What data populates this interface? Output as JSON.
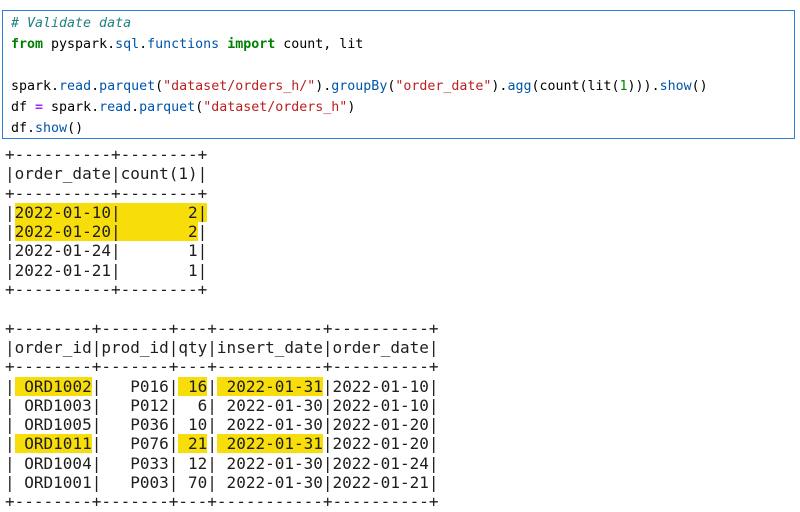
{
  "colors": {
    "cell_border": "#2e7ed5",
    "highlight": "#f7dd0a",
    "comment": "#208080",
    "keyword": "#008000",
    "property": "#0055aa",
    "string": "#ba2121",
    "number": "#008800",
    "operator": "#aa22ff",
    "output_text": "#1e1e1e"
  },
  "code_cell": {
    "lines": [
      [
        {
          "t": "# Validate data",
          "c": "com"
        }
      ],
      [
        {
          "t": "from",
          "c": "kw"
        },
        {
          "t": " pyspark.",
          "c": "pl"
        },
        {
          "t": "sql",
          "c": "prop"
        },
        {
          "t": ".",
          "c": "pl"
        },
        {
          "t": "functions",
          "c": "prop"
        },
        {
          "t": " ",
          "c": "pl"
        },
        {
          "t": "import",
          "c": "kw"
        },
        {
          "t": " count, lit",
          "c": "pl"
        }
      ],
      [],
      [
        {
          "t": "spark.",
          "c": "pl"
        },
        {
          "t": "read",
          "c": "prop"
        },
        {
          "t": ".",
          "c": "pl"
        },
        {
          "t": "parquet",
          "c": "prop"
        },
        {
          "t": "(",
          "c": "pl"
        },
        {
          "t": "\"dataset/orders_h/\"",
          "c": "str"
        },
        {
          "t": ").",
          "c": "pl"
        },
        {
          "t": "groupBy",
          "c": "prop"
        },
        {
          "t": "(",
          "c": "pl"
        },
        {
          "t": "\"order_date\"",
          "c": "str"
        },
        {
          "t": ").",
          "c": "pl"
        },
        {
          "t": "agg",
          "c": "prop"
        },
        {
          "t": "(count(lit(",
          "c": "pl"
        },
        {
          "t": "1",
          "c": "num"
        },
        {
          "t": "))).",
          "c": "pl"
        },
        {
          "t": "show",
          "c": "prop"
        },
        {
          "t": "()",
          "c": "pl"
        }
      ],
      [
        {
          "t": "df ",
          "c": "pl"
        },
        {
          "t": "=",
          "c": "op"
        },
        {
          "t": " spark.",
          "c": "pl"
        },
        {
          "t": "read",
          "c": "prop"
        },
        {
          "t": ".",
          "c": "pl"
        },
        {
          "t": "parquet",
          "c": "prop"
        },
        {
          "t": "(",
          "c": "pl"
        },
        {
          "t": "\"dataset/orders_h\"",
          "c": "str"
        },
        {
          "t": ")",
          "c": "pl"
        }
      ],
      [
        {
          "t": "df.",
          "c": "pl"
        },
        {
          "t": "show",
          "c": "prop"
        },
        {
          "t": "()",
          "c": "pl"
        }
      ]
    ]
  },
  "output": {
    "lines": [
      [
        {
          "t": "+----------+--------+"
        }
      ],
      [
        {
          "t": "|order_date|count(1)|"
        }
      ],
      [
        {
          "t": "+----------+--------+"
        }
      ],
      [
        {
          "t": "|"
        },
        {
          "t": "2022-01-10|       2|",
          "hl": true
        }
      ],
      [
        {
          "t": "|"
        },
        {
          "t": "2022-01-20|       2",
          "hl": true
        },
        {
          "t": "|"
        }
      ],
      [
        {
          "t": "|2022-01-24|       1|"
        }
      ],
      [
        {
          "t": "|2022-01-21|       1|"
        }
      ],
      [
        {
          "t": "+----------+--------+"
        }
      ],
      [],
      [
        {
          "t": "+--------+-------+---+-----------+----------+"
        }
      ],
      [
        {
          "t": "|order_id|prod_id|qty|insert_date|order_date|"
        }
      ],
      [
        {
          "t": "+--------+-------+---+-----------+----------+"
        }
      ],
      [
        {
          "t": "|"
        },
        {
          "t": " ORD1002",
          "hl": true
        },
        {
          "t": "|   P016|"
        },
        {
          "t": " 16",
          "hl": true
        },
        {
          "t": "|"
        },
        {
          "t": " 2022-01-31",
          "hl": true
        },
        {
          "t": "|2022-01-10|"
        }
      ],
      [
        {
          "t": "| ORD1003|   P012|  6| 2022-01-30|2022-01-10|"
        }
      ],
      [
        {
          "t": "| ORD1005|   P036| 10| 2022-01-30|2022-01-20|"
        }
      ],
      [
        {
          "t": "|"
        },
        {
          "t": " ORD1011",
          "hl": true
        },
        {
          "t": "|   P076|"
        },
        {
          "t": " 21",
          "hl": true
        },
        {
          "t": "|"
        },
        {
          "t": " 2022-01-31",
          "hl": true
        },
        {
          "t": "|2022-01-20|"
        }
      ],
      [
        {
          "t": "| ORD1004|   P033| 12| 2022-01-30|2022-01-24|"
        }
      ],
      [
        {
          "t": "| ORD1001|   P003| 70| 2022-01-30|2022-01-21|"
        }
      ],
      [
        {
          "t": "+--------+-------+---+-----------+----------+"
        }
      ]
    ],
    "tables": [
      {
        "columns": [
          "order_date",
          "count(1)"
        ],
        "rows": [
          [
            "2022-01-10",
            "2"
          ],
          [
            "2022-01-20",
            "2"
          ],
          [
            "2022-01-24",
            "1"
          ],
          [
            "2022-01-21",
            "1"
          ]
        ],
        "highlighted_rows": [
          0,
          1
        ]
      },
      {
        "columns": [
          "order_id",
          "prod_id",
          "qty",
          "insert_date",
          "order_date"
        ],
        "rows": [
          [
            "ORD1002",
            "P016",
            "16",
            "2022-01-31",
            "2022-01-10"
          ],
          [
            "ORD1003",
            "P012",
            "6",
            "2022-01-30",
            "2022-01-10"
          ],
          [
            "ORD1005",
            "P036",
            "10",
            "2022-01-30",
            "2022-01-20"
          ],
          [
            "ORD1011",
            "P076",
            "21",
            "2022-01-31",
            "2022-01-20"
          ],
          [
            "ORD1004",
            "P033",
            "12",
            "2022-01-30",
            "2022-01-24"
          ],
          [
            "ORD1001",
            "P003",
            "70",
            "2022-01-30",
            "2022-01-21"
          ]
        ],
        "highlighted_cells": [
          {
            "row": 0,
            "column": "order_id"
          },
          {
            "row": 0,
            "column": "qty"
          },
          {
            "row": 0,
            "column": "insert_date"
          },
          {
            "row": 3,
            "column": "order_id"
          },
          {
            "row": 3,
            "column": "qty"
          },
          {
            "row": 3,
            "column": "insert_date"
          }
        ]
      }
    ]
  }
}
